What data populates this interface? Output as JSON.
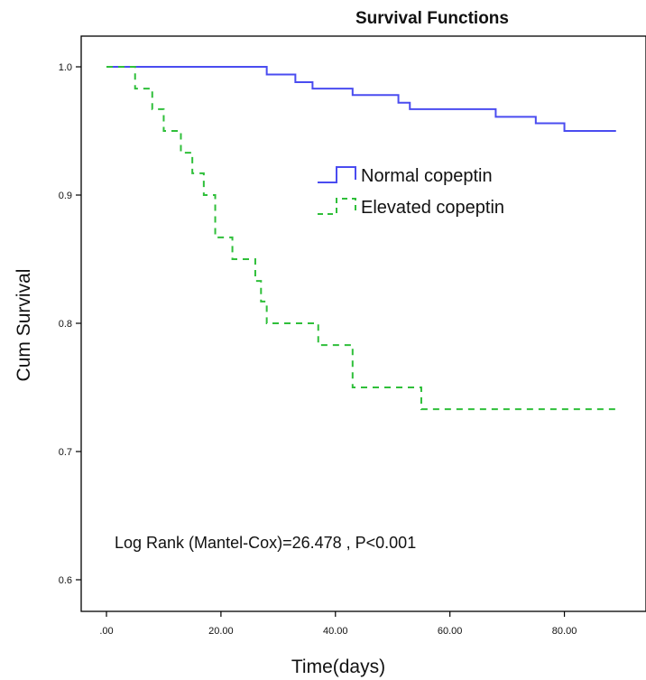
{
  "chart_data": {
    "type": "line",
    "title": "Survival Functions",
    "xlabel": "Time(days)",
    "ylabel": "Cum Survival",
    "xlim": [
      0,
      90
    ],
    "ylim": [
      0.6,
      1.0
    ],
    "x_ticks": [
      0,
      20,
      40,
      60,
      80
    ],
    "x_tick_labels": [
      ".00",
      "20.00",
      "40.00",
      "60.00",
      "80.00"
    ],
    "y_ticks": [
      0.6,
      0.7,
      0.8,
      0.9,
      1.0
    ],
    "y_tick_labels": [
      "0.6",
      "0.7",
      "0.8",
      "0.9",
      "1.0"
    ],
    "step": true,
    "grid": false,
    "legend_position": "center-right",
    "annotation": "Log Rank (Mantel-Cox)=26.478 ,  P<0.001",
    "series": [
      {
        "name": "Normal copeptin",
        "color": "#4a4cf0",
        "dash": "solid",
        "x": [
          0,
          28,
          33,
          36,
          43,
          51,
          53,
          68,
          75,
          80,
          89
        ],
        "y": [
          1.0,
          0.994,
          0.988,
          0.983,
          0.978,
          0.972,
          0.967,
          0.961,
          0.956,
          0.95,
          0.95
        ]
      },
      {
        "name": "Elevated copeptin",
        "color": "#2fbf3a",
        "dash": "dashed",
        "x": [
          0,
          5,
          8,
          10,
          13,
          15,
          17,
          19,
          20,
          22,
          26,
          27,
          28,
          37,
          43,
          55,
          89
        ],
        "y": [
          1.0,
          0.983,
          0.967,
          0.95,
          0.933,
          0.917,
          0.9,
          0.867,
          0.867,
          0.85,
          0.833,
          0.817,
          0.8,
          0.783,
          0.75,
          0.733,
          0.733
        ]
      }
    ]
  }
}
